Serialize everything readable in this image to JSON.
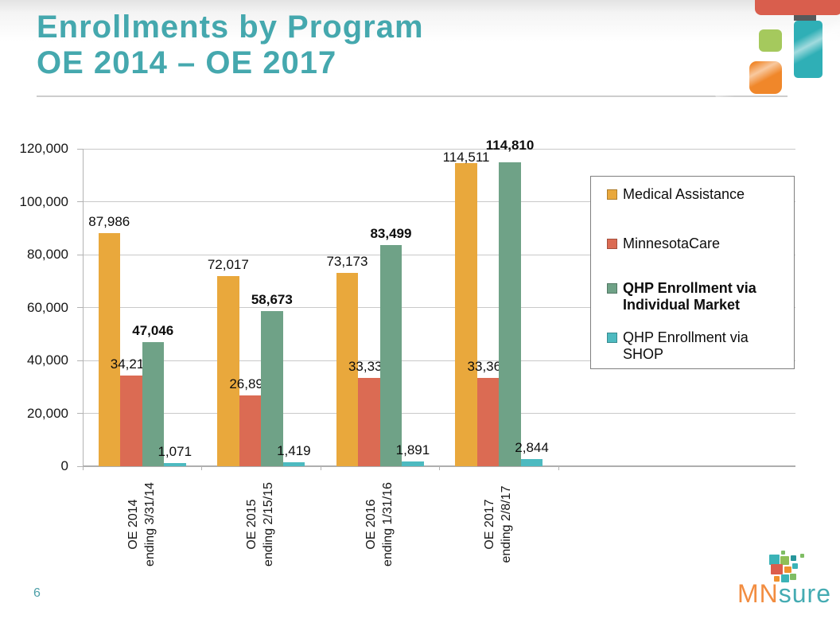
{
  "slide": {
    "title_line1": "Enrollments by Program",
    "title_line2": "OE 2014 – OE 2017",
    "page_number": "6"
  },
  "logo": {
    "text_mn": "MN",
    "text_sure": "sure"
  },
  "colors": {
    "title_teal": "#45a8ae",
    "medical_assistance": "#e9a83c",
    "minnesotacare": "#db6b53",
    "qhp_individual": "#6fa287",
    "qhp_shop": "#4dbac0",
    "gridline": "#c9c9c9",
    "legend_border": "#7f7f7f"
  },
  "chart_data": {
    "type": "bar",
    "title": "",
    "xlabel": "",
    "ylabel": "",
    "ylim": [
      0,
      120000
    ],
    "ytick_step": 20000,
    "ytick_labels": [
      "0",
      "20,000",
      "40,000",
      "60,000",
      "80,000",
      "100,000",
      "120,000"
    ],
    "grid": true,
    "legend_position": "right-overlay",
    "categories": [
      [
        "OE 2014",
        "ending 3/31/14"
      ],
      [
        "OE 2015",
        "ending 2/15/15"
      ],
      [
        "OE 2016",
        "ending 1/31/16"
      ],
      [
        "OE 2017",
        "ending 2/8/17"
      ]
    ],
    "series": [
      {
        "name": "Medical Assistance",
        "color": "#e9a83c",
        "bold": false,
        "values": [
          87986,
          72017,
          73173,
          114511
        ],
        "labels": [
          "87,986",
          "72,017",
          "73,173",
          "114,511"
        ]
      },
      {
        "name": "MinnesotaCare",
        "color": "#db6b53",
        "bold": false,
        "values": [
          34219,
          26891,
          33333,
          33369
        ],
        "labels": [
          "34,219",
          "26,891",
          "33,333",
          "33,369"
        ]
      },
      {
        "name": "QHP Enrollment via Individual Market",
        "color": "#6fa287",
        "bold": true,
        "values": [
          47046,
          58673,
          83499,
          114810
        ],
        "labels": [
          "47,046",
          "58,673",
          "83,499",
          "114,810"
        ]
      },
      {
        "name": "QHP Enrollment via SHOP",
        "color": "#4dbac0",
        "bold": false,
        "values": [
          1071,
          1419,
          1891,
          2844
        ],
        "labels": [
          "1,071",
          "1,419",
          "1,891",
          "2,844"
        ]
      }
    ],
    "label_nudges": {
      "0,3": 7,
      "2,3": -7
    }
  }
}
